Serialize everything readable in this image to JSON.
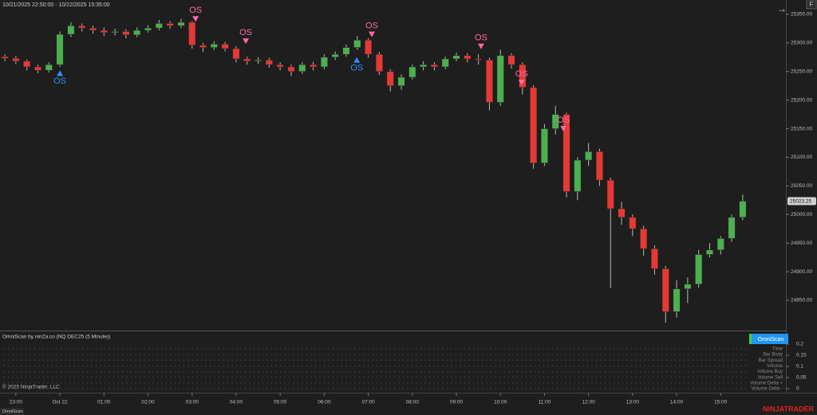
{
  "header": {
    "range": "10/21/2025 22:50:00 - 10/22/2025 15:35:00",
    "badge": "F",
    "arrow": "→"
  },
  "chart_data": {
    "type": "candlestick",
    "x": [
      -0.25,
      0,
      0.25,
      0.5,
      0.75,
      1,
      1.25,
      1.5,
      1.75,
      2,
      2.25,
      2.5,
      2.75,
      3,
      3.25,
      3.5,
      3.75,
      4,
      4.25,
      4.5,
      4.75,
      5,
      5.25,
      5.5,
      5.75,
      6,
      6.25,
      6.5,
      6.75,
      7,
      7.25,
      7.5,
      7.75,
      8,
      8.25,
      8.5,
      8.75,
      9,
      9.25,
      9.5,
      9.75,
      10,
      10.25,
      10.5,
      10.75,
      11,
      11.25,
      11.5,
      11.75,
      12,
      12.25,
      12.5,
      12.75,
      13,
      13.25,
      13.5,
      13.75,
      14,
      14.25,
      14.5,
      14.75,
      15,
      15.25,
      15.5,
      15.75,
      16,
      16.25,
      16.5
    ],
    "open": [
      25276,
      25273,
      25268,
      25258,
      25252,
      25262,
      25315,
      25330,
      25326,
      25322,
      25318,
      25320,
      25314,
      25322,
      25326,
      25334,
      25330,
      25336,
      25296,
      25292,
      25298,
      25290,
      25272,
      25268,
      25270,
      25262,
      25258,
      25250,
      25262,
      25258,
      25275,
      25280,
      25292,
      25305,
      25280,
      25250,
      25225,
      25240,
      25258,
      25262,
      25258,
      25272,
      25278,
      25272,
      25270,
      25196,
      25278,
      25262,
      25222,
      25090,
      25150,
      25175,
      25040,
      25095,
      25110,
      25060,
      25010,
      24995,
      24975,
      24940,
      24905,
      24830,
      24870,
      24878,
      24930,
      24938,
      24958,
      24995
    ],
    "high": [
      25280,
      25277,
      25271,
      25262,
      25266,
      25320,
      25336,
      25334,
      25330,
      25327,
      25325,
      25324,
      25327,
      25331,
      25340,
      25338,
      25342,
      25338,
      25300,
      25303,
      25302,
      25294,
      25276,
      25275,
      25274,
      25266,
      25262,
      25266,
      25267,
      25280,
      25285,
      25297,
      25312,
      25308,
      25284,
      25254,
      25245,
      25262,
      25268,
      25266,
      25276,
      25283,
      25282,
      25280,
      25274,
      25288,
      25282,
      25266,
      25226,
      25158,
      25190,
      25178,
      25100,
      25125,
      25115,
      25064,
      25022,
      25000,
      24980,
      24946,
      24910,
      24885,
      24890,
      24938,
      24950,
      24962,
      25000,
      25035
    ],
    "low": [
      25268,
      25263,
      25252,
      25247,
      25248,
      25258,
      25310,
      25320,
      25316,
      25312,
      25313,
      25308,
      25310,
      25318,
      25322,
      25325,
      25326,
      25290,
      25284,
      25288,
      25285,
      25266,
      25262,
      25263,
      25257,
      25252,
      25242,
      25246,
      25252,
      25254,
      25270,
      25276,
      25288,
      25274,
      25244,
      25215,
      25218,
      25236,
      25252,
      25252,
      25254,
      25268,
      25266,
      25262,
      25182,
      25190,
      25255,
      25210,
      25080,
      25085,
      25140,
      25030,
      25025,
      25085,
      25050,
      24871,
      24982,
      24962,
      24928,
      24895,
      24811,
      24820,
      24845,
      24872,
      24925,
      24930,
      24952,
      24990
    ],
    "close": [
      25273,
      25268,
      25258,
      25252,
      25262,
      25315,
      25330,
      25326,
      25322,
      25318,
      25320,
      25314,
      25322,
      25326,
      25334,
      25330,
      25336,
      25296,
      25292,
      25298,
      25290,
      25272,
      25268,
      25270,
      25262,
      25258,
      25250,
      25262,
      25258,
      25275,
      25280,
      25292,
      25305,
      25280,
      25250,
      25225,
      25240,
      25258,
      25262,
      25258,
      25272,
      25278,
      25272,
      25270,
      25196,
      25278,
      25262,
      25222,
      25090,
      25150,
      25175,
      25040,
      25095,
      25110,
      25060,
      25010,
      24995,
      24975,
      24940,
      24905,
      24830,
      24870,
      24878,
      24930,
      24938,
      24958,
      24995,
      25023.25
    ],
    "up_color": "#4caf50",
    "down_color": "#e53935",
    "xlim": [
      -0.36,
      17.48
    ],
    "ylim": [
      24797,
      25375
    ],
    "xticks": [
      {
        "value": 0,
        "label": "23:00"
      },
      {
        "value": 1,
        "label": "Oct 22"
      },
      {
        "value": 2,
        "label": "01:00"
      },
      {
        "value": 3,
        "label": "02:00"
      },
      {
        "value": 4,
        "label": "03:00"
      },
      {
        "value": 5,
        "label": "04:00"
      },
      {
        "value": 6,
        "label": "05:00"
      },
      {
        "value": 7,
        "label": "06:00"
      },
      {
        "value": 8,
        "label": "07:00"
      },
      {
        "value": 9,
        "label": "08:00"
      },
      {
        "value": 10,
        "label": "09:00"
      },
      {
        "value": 11,
        "label": "10:00"
      },
      {
        "value": 12,
        "label": "11:00"
      },
      {
        "value": 13,
        "label": "12:00"
      },
      {
        "value": 14,
        "label": "13:00"
      },
      {
        "value": 15,
        "label": "14:00"
      },
      {
        "value": 16,
        "label": "15:00"
      }
    ],
    "yticks": [
      {
        "value": 24850,
        "label": "24850.00"
      },
      {
        "value": 24900,
        "label": "24900.00"
      },
      {
        "value": 24950,
        "label": "24950.00"
      },
      {
        "value": 25000,
        "label": "25000.00"
      },
      {
        "value": 25050,
        "label": "25050.00"
      },
      {
        "value": 25100,
        "label": "25100.00"
      },
      {
        "value": 25150,
        "label": "25150.00"
      },
      {
        "value": 25200,
        "label": "25200.00"
      },
      {
        "value": 25250,
        "label": "25250.00"
      },
      {
        "value": 25300,
        "label": "25300.00"
      },
      {
        "value": 25350,
        "label": "25350.00"
      }
    ],
    "signal_colors": {
      "up": "#2f8fff",
      "down": "#ff6aa8"
    },
    "signals": [
      {
        "label": "OS",
        "direction": "up",
        "x": 1.0,
        "price": 25252
      },
      {
        "label": "OS",
        "direction": "down",
        "x": 4.08,
        "price": 25337
      },
      {
        "label": "OS",
        "direction": "down",
        "x": 5.22,
        "price": 25298
      },
      {
        "label": "OS",
        "direction": "up",
        "x": 7.74,
        "price": 25275
      },
      {
        "label": "OS",
        "direction": "down",
        "x": 8.08,
        "price": 25310
      },
      {
        "label": "OS",
        "direction": "down",
        "x": 10.56,
        "price": 25289
      },
      {
        "label": "OS",
        "direction": "down",
        "x": 11.48,
        "price": 25226
      },
      {
        "label": "OS",
        "direction": "down",
        "x": 12.43,
        "price": 25145
      }
    ]
  },
  "indicator_panel": {
    "title": "OmniScan by ninZa.co (NQ DEC25 (5 Minute))",
    "button": "OmniScan",
    "ylim": [
      0,
      0.2
    ],
    "yticks": [
      0.2,
      0.15,
      0.1,
      0.05,
      0
    ],
    "rows": [
      "Time",
      "Bar Body",
      "Bar Spread",
      "Volume",
      "Volume Buy",
      "Volume Sell",
      "Volume Delta +",
      "Volume Delta -"
    ]
  },
  "footer": {
    "copyright": "© 2025 NinjaTrader, LLC",
    "tab": "OmniScan",
    "logo": "NINJATRADER"
  }
}
